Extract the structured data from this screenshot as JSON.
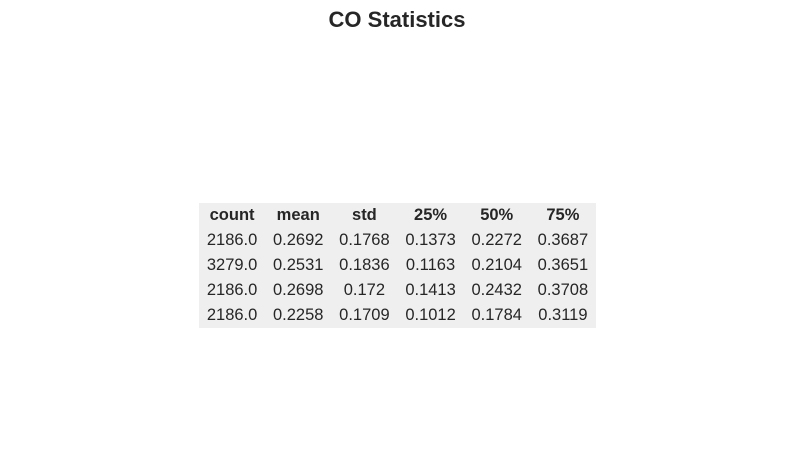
{
  "chart_data": {
    "type": "table",
    "title": "CO Statistics",
    "columns": [
      "count",
      "mean",
      "std",
      "25%",
      "50%",
      "75%"
    ],
    "rows": [
      [
        "2186.0",
        "0.2692",
        "0.1768",
        "0.1373",
        "0.2272",
        "0.3687"
      ],
      [
        "3279.0",
        "0.2531",
        "0.1836",
        "0.1163",
        "0.2104",
        "0.3651"
      ],
      [
        "2186.0",
        "0.2698",
        "0.172",
        "0.1413",
        "0.2432",
        "0.3708"
      ],
      [
        "2186.0",
        "0.2258",
        "0.1709",
        "0.1012",
        "0.1784",
        "0.3119"
      ]
    ],
    "colors": {
      "table_background": "#efefef",
      "text": "#262626"
    }
  }
}
